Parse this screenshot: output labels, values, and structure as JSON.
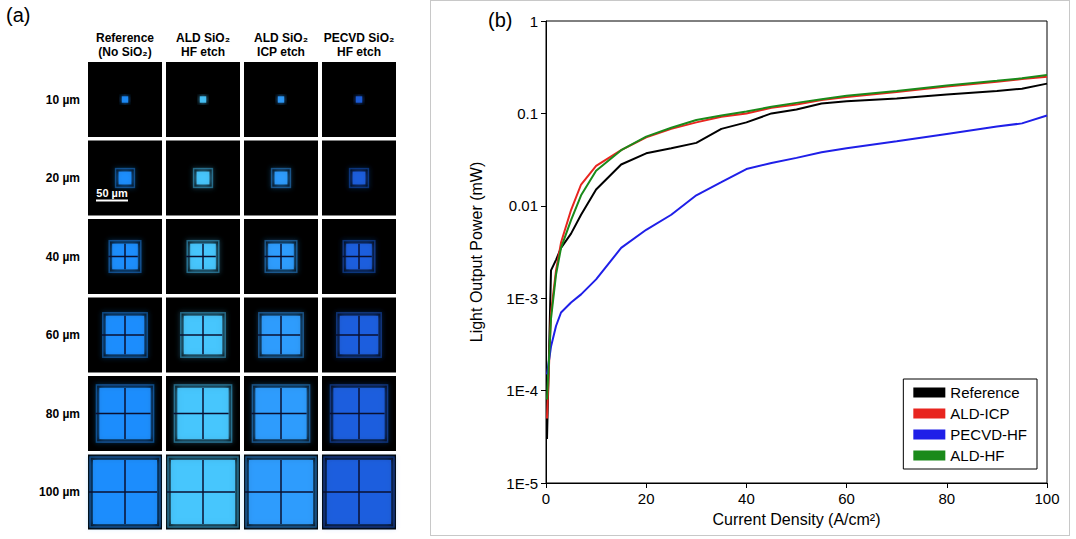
{
  "figure_a": {
    "letter": "(a)",
    "columns": [
      {
        "label": "Reference (No SiO₂)",
        "color": "#1e8fff"
      },
      {
        "label": "ALD SiO₂ HF etch",
        "color": "#48c8ff"
      },
      {
        "label": "ALD SiO₂ ICP etch",
        "color": "#2f9dff"
      },
      {
        "label": "PECVD SiO₂ HF etch",
        "color": "#1c5fe0"
      }
    ],
    "rows": [
      {
        "label": "10 µm",
        "size_um": 10
      },
      {
        "label": "20 µm",
        "size_um": 20
      },
      {
        "label": "40 µm",
        "size_um": 40
      },
      {
        "label": "60 µm",
        "size_um": 60
      },
      {
        "label": "80 µm",
        "size_um": 80
      },
      {
        "label": "100 µm",
        "size_um": 100
      }
    ],
    "scale_bar": {
      "label": "50 µm",
      "length_um": 50
    }
  },
  "chart_data": {
    "type": "line",
    "title": "(b)",
    "x_label": "Current Density (A/cm²)",
    "y_label": "Light Output Power (mW)",
    "x": [
      0.2,
      1,
      2,
      3,
      5,
      7,
      10,
      15,
      20,
      25,
      30,
      35,
      40,
      45,
      50,
      55,
      60,
      70,
      80,
      90,
      95,
      100
    ],
    "series": [
      {
        "name": "Reference",
        "color": "#000000",
        "values": [
          3e-05,
          0.002,
          0.0026,
          0.0035,
          0.005,
          0.008,
          0.015,
          0.028,
          0.037,
          0.042,
          0.048,
          0.068,
          0.08,
          0.1,
          0.11,
          0.128,
          0.135,
          0.145,
          0.16,
          0.175,
          0.185,
          0.21
        ]
      },
      {
        "name": "ALD-ICP",
        "color": "#e8251f",
        "values": [
          5e-05,
          0.0007,
          0.002,
          0.004,
          0.009,
          0.017,
          0.027,
          0.04,
          0.055,
          0.068,
          0.08,
          0.092,
          0.1,
          0.115,
          0.125,
          0.14,
          0.15,
          0.17,
          0.195,
          0.22,
          0.235,
          0.25
        ]
      },
      {
        "name": "PECVD-HF",
        "color": "#1f1fe8",
        "values": [
          0.00015,
          0.0003,
          0.0005,
          0.0007,
          0.0009,
          0.0011,
          0.0016,
          0.0035,
          0.0055,
          0.008,
          0.013,
          0.018,
          0.025,
          0.029,
          0.033,
          0.038,
          0.042,
          0.05,
          0.06,
          0.072,
          0.078,
          0.095
        ]
      },
      {
        "name": "ALD-HF",
        "color": "#1a8a1a",
        "values": [
          8e-05,
          0.0006,
          0.0018,
          0.0035,
          0.007,
          0.013,
          0.024,
          0.04,
          0.056,
          0.07,
          0.085,
          0.095,
          0.105,
          0.118,
          0.13,
          0.142,
          0.155,
          0.175,
          0.2,
          0.225,
          0.24,
          0.26
        ]
      }
    ],
    "xlim": [
      0,
      100
    ],
    "xticks": [
      0,
      20,
      40,
      60,
      80,
      100
    ],
    "ylim": [
      1e-05,
      1
    ],
    "yticks": [
      {
        "value": 1e-05,
        "label": "1E-5"
      },
      {
        "value": 0.0001,
        "label": "1E-4"
      },
      {
        "value": 0.001,
        "label": "1E-3"
      },
      0.01,
      0.1,
      1
    ],
    "log": "y",
    "legend": "lower right",
    "grid": false
  }
}
